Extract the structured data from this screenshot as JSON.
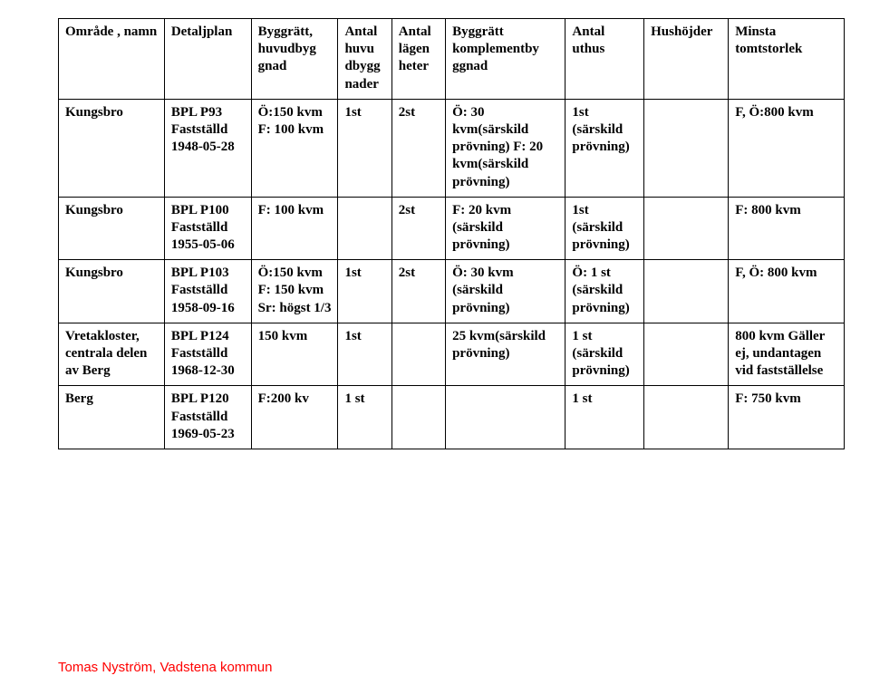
{
  "headers": [
    "Område , namn",
    "Detaljplan",
    "Byggrätt, huvudbyg gnad",
    "Antal huvu dbygg nader",
    "Antal lägen heter",
    "Byggrätt komplementby ggnad",
    "Antal uthus",
    "Hushöjder",
    "Minsta tomtstorlek"
  ],
  "rows": [
    [
      "Kungsbro",
      "BPL P93 Fastställd 1948-05-28",
      "Ö:150 kvm F: 100 kvm",
      "1st",
      "2st",
      " Ö: 30 kvm(särskild prövning)\n F: 20 kvm(särskild prövning)",
      "1st (särskild prövning)",
      "",
      "F, Ö:800 kvm"
    ],
    [
      "Kungsbro",
      "BPL P100 Fastställd 1955-05-06",
      "F: 100 kvm",
      "",
      "2st",
      "F: 20 kvm (särskild prövning)",
      "1st (särskild prövning)",
      "",
      "F: 800 kvm"
    ],
    [
      "Kungsbro",
      "BPL P103 Fastställd 1958-09-16",
      "Ö:150 kvm F: 150 kvm\nSr: högst 1/3",
      "1st",
      "2st",
      "Ö: 30 kvm (särskild prövning)",
      "Ö: 1 st (särskild prövning)",
      "",
      "F, Ö: 800 kvm"
    ],
    [
      "Vretakloster, centrala delen av Berg",
      "BPL P124 Fastställd 1968-12-30",
      "150 kvm",
      "1st",
      "",
      "25 kvm(särskild prövning)",
      "1 st (särskild prövning)",
      "",
      "800 kvm Gäller ej, undantagen vid fastställelse"
    ],
    [
      "Berg",
      "BPL P120 Fastställd 1969-05-23",
      "F:200 kv",
      "1 st",
      "",
      "",
      "1 st",
      "",
      "F: 750 kvm"
    ]
  ],
  "footer": "Tomas Nyström, Vadstena kommun"
}
